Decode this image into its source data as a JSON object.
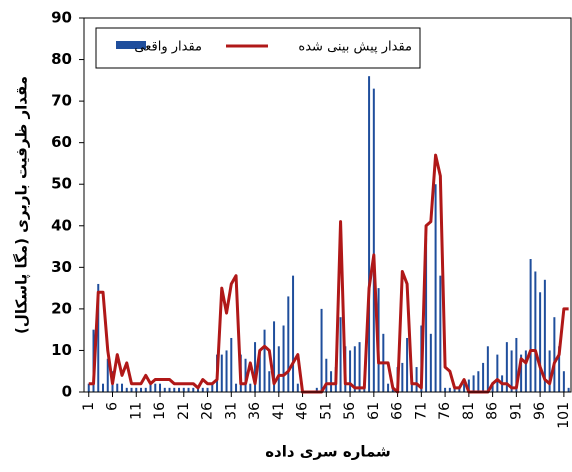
{
  "chart_data": {
    "type": "bar-line",
    "xlabel": "شماره سری داده",
    "ylabel": "مقدار ظرفیت باربری (مگا پاسکال)",
    "x": [
      1,
      2,
      3,
      4,
      5,
      6,
      7,
      8,
      9,
      10,
      11,
      12,
      13,
      14,
      15,
      16,
      17,
      18,
      19,
      20,
      21,
      22,
      23,
      24,
      25,
      26,
      27,
      28,
      29,
      30,
      31,
      32,
      33,
      34,
      35,
      36,
      37,
      38,
      39,
      40,
      41,
      42,
      43,
      44,
      45,
      46,
      47,
      48,
      49,
      50,
      51,
      52,
      53,
      54,
      55,
      56,
      57,
      58,
      59,
      60,
      61,
      62,
      63,
      64,
      65,
      66,
      67,
      68,
      69,
      70,
      71,
      72,
      73,
      74,
      75,
      76,
      77,
      78,
      79,
      80,
      81,
      82,
      83,
      84,
      85,
      86,
      87,
      88,
      89,
      90,
      91,
      92,
      93,
      94,
      95,
      96,
      97,
      98,
      99,
      100,
      101,
      102
    ],
    "series": [
      {
        "name": "مقدار واقعی",
        "kind": "bar",
        "color": "#1f4e9c",
        "values": [
          2,
          15,
          26,
          2,
          8,
          5,
          2,
          2,
          1,
          1,
          1,
          1,
          1,
          2,
          2,
          2,
          1,
          1,
          1,
          1,
          1,
          1,
          1,
          1,
          1,
          1,
          2,
          9,
          9,
          10,
          13,
          2,
          9,
          8,
          2,
          12,
          10,
          15,
          5,
          17,
          11,
          16,
          23,
          28,
          2,
          0,
          0,
          0,
          1,
          20,
          8,
          5,
          6,
          18,
          11,
          10,
          11,
          12,
          2,
          76,
          73,
          25,
          14,
          2,
          1,
          6,
          7,
          13,
          2,
          6,
          16,
          37,
          14,
          50,
          28,
          1,
          1,
          1,
          1,
          2,
          3,
          4,
          5,
          7,
          11,
          2,
          9,
          4,
          12,
          10,
          13,
          9,
          10,
          32,
          29,
          24,
          27,
          10,
          18,
          11,
          5,
          1
        ]
      },
      {
        "name": "مقدار پیش بینی شده",
        "kind": "line",
        "color": "#b01818",
        "values": [
          2,
          2,
          24,
          24,
          10,
          2,
          9,
          4,
          7,
          2,
          2,
          2,
          4,
          2,
          3,
          3,
          3,
          3,
          2,
          2,
          2,
          2,
          2,
          1,
          3,
          2,
          2,
          3,
          25,
          19,
          26,
          28,
          2,
          2,
          7,
          2,
          10,
          11,
          10,
          2,
          4,
          4,
          5,
          7,
          9,
          0,
          0,
          0,
          0,
          0,
          2,
          2,
          2,
          41,
          2,
          2,
          1,
          1,
          1,
          25,
          33,
          7,
          7,
          7,
          1,
          0,
          29,
          26,
          2,
          2,
          1,
          40,
          41,
          57,
          52,
          6,
          5,
          1,
          1,
          3,
          0,
          0,
          0,
          0,
          0,
          2,
          3,
          2,
          2,
          1,
          1,
          8,
          7,
          10,
          10,
          6,
          3,
          2,
          7,
          9,
          20,
          20
        ]
      }
    ],
    "xlim": [
      0,
      102.5
    ],
    "xticks": [
      1,
      6,
      11,
      16,
      21,
      26,
      31,
      36,
      41,
      46,
      51,
      56,
      61,
      66,
      71,
      76,
      81,
      86,
      91,
      96,
      101
    ],
    "ylim": [
      0,
      90
    ],
    "yticks": [
      0,
      10,
      20,
      30,
      40,
      50,
      60,
      70,
      80,
      90
    ],
    "legend": "top-left"
  }
}
